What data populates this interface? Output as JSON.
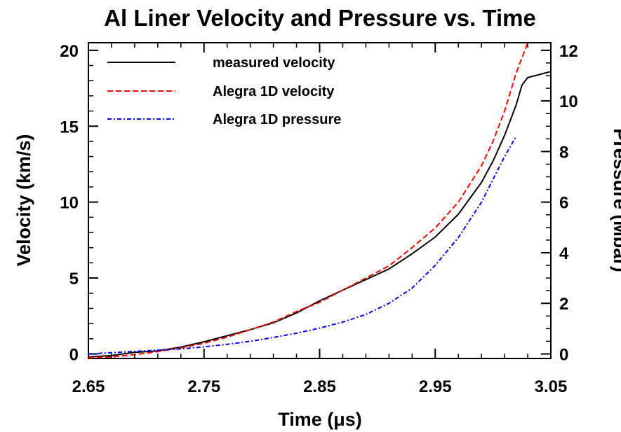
{
  "chart_data": {
    "type": "line",
    "title": "Al Liner Velocity and Pressure vs. Time",
    "xlabel": "Time  (μs)",
    "ylabel_left": "Velocity  (km/s)",
    "ylabel_right": "Pressure  (Mbar)",
    "xlim": [
      2.65,
      3.05
    ],
    "ylim_left": [
      -0.3,
      20.5
    ],
    "ylim_right": [
      -0.18,
      12.3
    ],
    "x_ticks": [
      "2.65",
      "2.75",
      "2.85",
      "2.95",
      "3.05"
    ],
    "y_ticks_left": [
      "0",
      "5",
      "10",
      "15",
      "20"
    ],
    "y_ticks_right": [
      "0",
      "2",
      "4",
      "6",
      "8",
      "10",
      "12"
    ],
    "grid": false,
    "legend_position": "top-left",
    "series": [
      {
        "name": "measured velocity",
        "axis": "left",
        "color": "#000000",
        "style": "solid",
        "x": [
          2.65,
          2.67,
          2.69,
          2.71,
          2.73,
          2.75,
          2.77,
          2.79,
          2.81,
          2.83,
          2.85,
          2.87,
          2.89,
          2.91,
          2.93,
          2.95,
          2.97,
          2.99,
          3.0,
          3.01,
          3.02,
          3.025,
          3.03,
          3.04,
          3.05
        ],
        "y": [
          -0.2,
          -0.1,
          0.1,
          0.2,
          0.45,
          0.8,
          1.2,
          1.6,
          2.05,
          2.7,
          3.5,
          4.2,
          4.9,
          5.6,
          6.6,
          7.7,
          9.2,
          11.3,
          12.7,
          14.4,
          16.4,
          17.7,
          18.2,
          18.4,
          18.6
        ]
      },
      {
        "name": "Alegra 1D velocity",
        "axis": "left",
        "color": "#ff0000",
        "style": "dashed",
        "x": [
          2.65,
          2.67,
          2.69,
          2.71,
          2.73,
          2.75,
          2.77,
          2.79,
          2.81,
          2.83,
          2.85,
          2.87,
          2.89,
          2.91,
          2.93,
          2.95,
          2.97,
          2.99,
          3.0,
          3.01,
          3.02,
          3.03
        ],
        "y": [
          -0.25,
          -0.2,
          -0.05,
          0.15,
          0.4,
          0.7,
          1.1,
          1.6,
          2.1,
          2.8,
          3.4,
          4.2,
          5.0,
          5.8,
          7.0,
          8.3,
          10.0,
          12.4,
          14.0,
          16.0,
          18.5,
          20.5
        ]
      },
      {
        "name": "Alegra 1D pressure",
        "axis": "right",
        "color": "#0000ff",
        "style": "dash-dot",
        "x": [
          2.65,
          2.67,
          2.69,
          2.71,
          2.73,
          2.75,
          2.77,
          2.79,
          2.81,
          2.83,
          2.85,
          2.87,
          2.89,
          2.91,
          2.93,
          2.95,
          2.97,
          2.99,
          3.0,
          3.01,
          3.02
        ],
        "y": [
          0.0,
          0.05,
          0.1,
          0.15,
          0.2,
          0.28,
          0.38,
          0.5,
          0.65,
          0.82,
          1.02,
          1.26,
          1.56,
          2.0,
          2.6,
          3.5,
          4.6,
          6.0,
          6.9,
          7.8,
          8.6
        ]
      }
    ]
  }
}
